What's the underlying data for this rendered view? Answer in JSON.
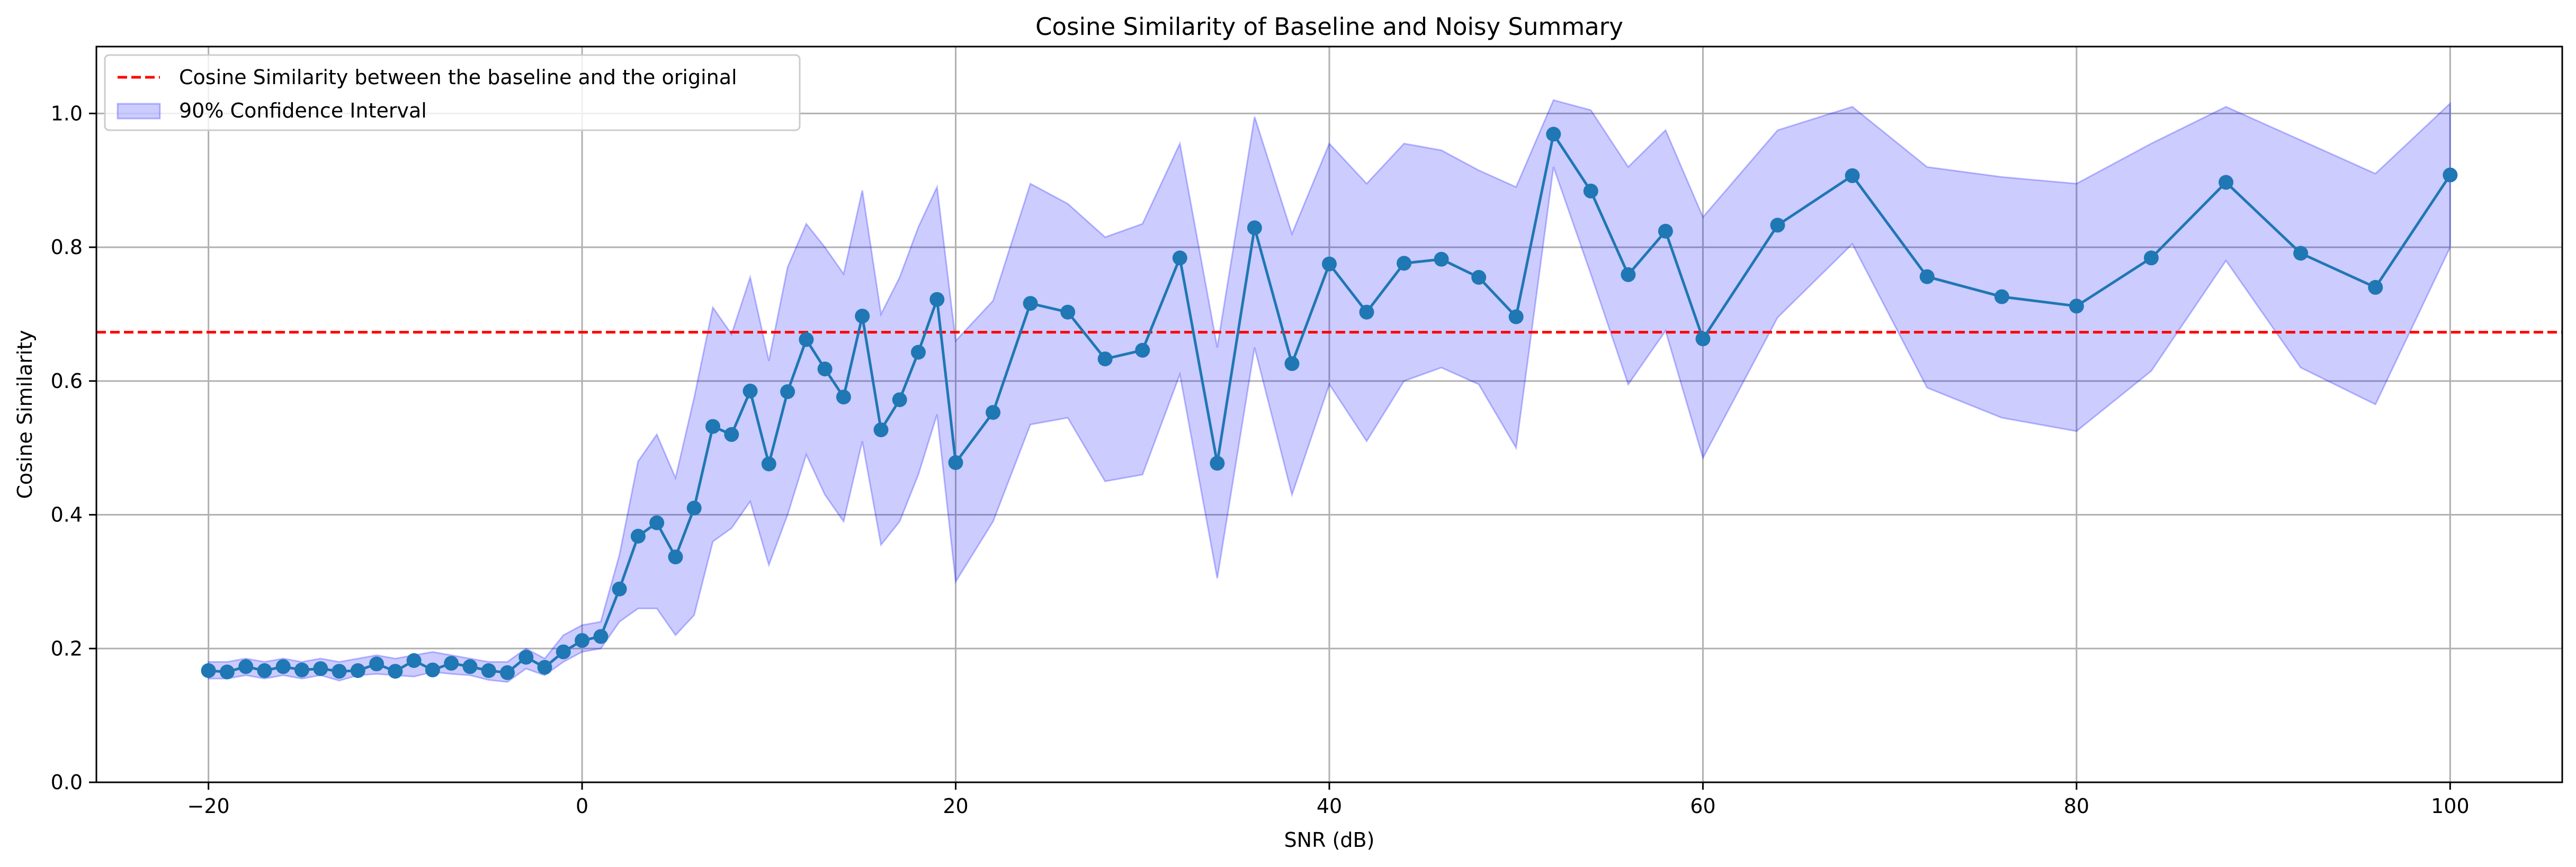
{
  "chart_data": {
    "type": "line",
    "title": "Cosine Similarity of Baseline and Noisy Summary",
    "xlabel": "SNR (dB)",
    "ylabel": "Cosine Similarity",
    "xlim": [
      -26,
      106
    ],
    "ylim": [
      0.0,
      1.1
    ],
    "xticks": [
      -20,
      0,
      20,
      40,
      60,
      80,
      100
    ],
    "xtick_labels": [
      "−20",
      "0",
      "20",
      "40",
      "60",
      "80",
      "100"
    ],
    "yticks": [
      0.0,
      0.2,
      0.4,
      0.6,
      0.8,
      1.0
    ],
    "ytick_labels": [
      "0.0",
      "0.2",
      "0.4",
      "0.6",
      "0.8",
      "1.0"
    ],
    "grid": true,
    "legend_position": "top-left",
    "reference_line": {
      "name": "Cosine Similarity between the baseline and the original",
      "y": 0.673,
      "color": "#ff0000",
      "style": "dashed"
    },
    "band": {
      "name": "90% Confidence Interval",
      "color": "#0000ff",
      "lower": [
        0.155,
        0.155,
        0.16,
        0.155,
        0.16,
        0.155,
        0.16,
        0.152,
        0.16,
        0.162,
        0.16,
        0.158,
        0.165,
        0.162,
        0.16,
        0.153,
        0.15,
        0.17,
        0.16,
        0.18,
        0.195,
        0.2,
        0.24,
        0.26,
        0.26,
        0.22,
        0.25,
        0.36,
        0.38,
        0.42,
        0.325,
        0.4,
        0.49,
        0.43,
        0.39,
        0.51,
        0.355,
        0.39,
        0.46,
        0.55,
        0.3,
        0.39,
        0.535,
        0.545,
        0.45,
        0.46,
        0.61,
        0.305,
        0.65,
        0.43,
        0.595,
        0.51,
        0.6,
        0.62,
        0.595,
        0.5,
        0.92,
        0.76,
        0.595,
        0.675,
        0.485,
        0.695,
        0.805,
        0.59,
        0.545,
        0.525,
        0.615,
        0.78,
        0.62,
        0.565,
        0.8
      ],
      "upper": [
        0.18,
        0.18,
        0.185,
        0.18,
        0.185,
        0.18,
        0.185,
        0.18,
        0.185,
        0.19,
        0.185,
        0.19,
        0.195,
        0.19,
        0.185,
        0.18,
        0.18,
        0.2,
        0.185,
        0.22,
        0.235,
        0.24,
        0.34,
        0.48,
        0.52,
        0.455,
        0.575,
        0.71,
        0.67,
        0.755,
        0.63,
        0.77,
        0.835,
        0.8,
        0.76,
        0.885,
        0.7,
        0.755,
        0.83,
        0.89,
        0.66,
        0.72,
        0.895,
        0.865,
        0.815,
        0.835,
        0.955,
        0.65,
        0.995,
        0.82,
        0.955,
        0.895,
        0.955,
        0.945,
        0.915,
        0.89,
        1.02,
        1.005,
        0.92,
        0.975,
        0.845,
        0.975,
        1.01,
        0.92,
        0.905,
        0.895,
        0.955,
        1.01,
        0.96,
        0.91,
        1.015
      ]
    },
    "series": [
      {
        "name": "",
        "color": "#1f77b4",
        "x": [
          -20,
          -19,
          -18,
          -17,
          -16,
          -15,
          -14,
          -13,
          -12,
          -11,
          -10,
          -9,
          -8,
          -7,
          -6,
          -5,
          -4,
          -3,
          -2,
          -1,
          0,
          1,
          2,
          3,
          4,
          5,
          6,
          7,
          8,
          9,
          10,
          11,
          12,
          13,
          14,
          15,
          16,
          17,
          18,
          19,
          20,
          22,
          24,
          26,
          28,
          30,
          32,
          34,
          36,
          38,
          40,
          42,
          44,
          46,
          48,
          50,
          52,
          54,
          56,
          58,
          60,
          64,
          68,
          72,
          76,
          80,
          84,
          88,
          92,
          96,
          100
        ],
        "y": [
          0.167,
          0.165,
          0.173,
          0.167,
          0.173,
          0.168,
          0.17,
          0.166,
          0.167,
          0.177,
          0.166,
          0.182,
          0.168,
          0.178,
          0.173,
          0.167,
          0.164,
          0.187,
          0.172,
          0.195,
          0.212,
          0.218,
          0.289,
          0.368,
          0.388,
          0.337,
          0.41,
          0.532,
          0.52,
          0.585,
          0.476,
          0.584,
          0.662,
          0.618,
          0.576,
          0.697,
          0.527,
          0.572,
          0.643,
          0.722,
          0.478,
          0.553,
          0.716,
          0.703,
          0.633,
          0.646,
          0.784,
          0.477,
          0.829,
          0.626,
          0.775,
          0.703,
          0.776,
          0.782,
          0.755,
          0.696,
          0.969,
          0.884,
          0.759,
          0.824,
          0.663,
          0.833,
          0.907,
          0.756,
          0.726,
          0.712,
          0.784,
          0.897,
          0.791,
          0.74,
          0.908
        ]
      }
    ]
  }
}
